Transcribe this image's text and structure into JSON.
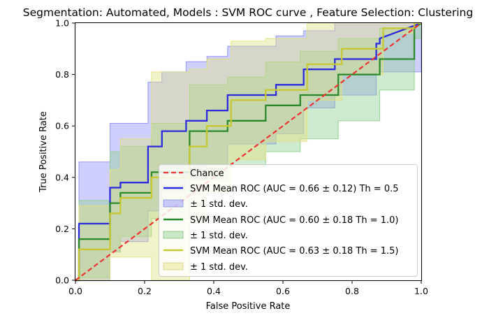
{
  "chart_data": {
    "type": "line",
    "title": "Segmentation: Automated, Models : SVM ROC curve , Feature Selection: Clustering",
    "xlabel": "False Positive Rate",
    "ylabel": "True Positive Rate",
    "xlim": [
      0.0,
      1.0
    ],
    "ylim": [
      0.0,
      1.0
    ],
    "xticks": [
      "0.0",
      "0.2",
      "0.4",
      "0.6",
      "0.8",
      "1.0"
    ],
    "yticks": [
      "0.0",
      "0.2",
      "0.4",
      "0.6",
      "0.8",
      "1.0"
    ],
    "grid": false,
    "legend_position": "lower-right",
    "chance": {
      "name": "Chance",
      "color": "#ee3333",
      "x": [
        0,
        1
      ],
      "y": [
        0,
        1
      ]
    },
    "series": [
      {
        "name": "SVM Mean ROC (AUC = 0.66 ± 0.12) Th = 0.5",
        "band_name": "± 1 std. dev.",
        "color": "#2b2bdd",
        "band_color": "#8c8cff",
        "x": [
          0.0,
          0.01,
          0.01,
          0.1,
          0.1,
          0.13,
          0.13,
          0.21,
          0.21,
          0.25,
          0.25,
          0.32,
          0.32,
          0.38,
          0.38,
          0.44,
          0.44,
          0.58,
          0.58,
          0.66,
          0.66,
          0.75,
          0.75,
          0.87,
          0.87,
          0.88,
          0.88,
          1.0
        ],
        "y": [
          0.0,
          0.0,
          0.22,
          0.22,
          0.36,
          0.36,
          0.38,
          0.38,
          0.52,
          0.52,
          0.58,
          0.58,
          0.62,
          0.62,
          0.66,
          0.66,
          0.72,
          0.72,
          0.76,
          0.76,
          0.82,
          0.82,
          0.86,
          0.86,
          0.92,
          0.92,
          0.94,
          1.0
        ],
        "band_upper": [
          0.0,
          0.0,
          0.46,
          0.46,
          0.61,
          0.61,
          0.61,
          0.61,
          0.77,
          0.77,
          0.81,
          0.81,
          0.85,
          0.85,
          0.87,
          0.87,
          0.91,
          0.91,
          0.95,
          0.95,
          0.97,
          0.97,
          1.0,
          1.0,
          1.0,
          1.0,
          1.0,
          1.0
        ],
        "band_lower": [
          0.0,
          0.0,
          0.0,
          0.0,
          0.11,
          0.11,
          0.15,
          0.15,
          0.27,
          0.27,
          0.35,
          0.35,
          0.39,
          0.39,
          0.45,
          0.45,
          0.53,
          0.53,
          0.57,
          0.57,
          0.67,
          0.67,
          0.72,
          0.72,
          0.81,
          0.81,
          0.81,
          0.81
        ]
      },
      {
        "name": "SVM Mean ROC (AUC = 0.60 ± 0.18 Th = 1.0)",
        "band_name": "± 1 std. dev.",
        "color": "#2a8a2a",
        "band_color": "#8ccf8c",
        "x": [
          0.0,
          0.01,
          0.01,
          0.1,
          0.1,
          0.13,
          0.13,
          0.22,
          0.22,
          0.33,
          0.33,
          0.44,
          0.44,
          0.55,
          0.55,
          0.65,
          0.65,
          0.76,
          0.76,
          0.88,
          0.88,
          0.98,
          0.98,
          1.0
        ],
        "y": [
          0.0,
          0.0,
          0.16,
          0.16,
          0.3,
          0.3,
          0.34,
          0.34,
          0.42,
          0.42,
          0.58,
          0.58,
          0.62,
          0.62,
          0.68,
          0.68,
          0.72,
          0.72,
          0.8,
          0.8,
          0.86,
          0.86,
          0.98,
          1.0
        ],
        "band_upper": [
          0.0,
          0.0,
          0.31,
          0.31,
          0.5,
          0.5,
          0.52,
          0.52,
          0.61,
          0.61,
          0.76,
          0.76,
          0.79,
          0.79,
          0.85,
          0.85,
          0.89,
          0.89,
          0.94,
          0.94,
          0.98,
          0.98,
          1.0,
          1.0
        ],
        "band_lower": [
          0.0,
          0.0,
          0.01,
          0.01,
          0.11,
          0.11,
          0.17,
          0.17,
          0.24,
          0.24,
          0.39,
          0.39,
          0.44,
          0.44,
          0.5,
          0.5,
          0.55,
          0.55,
          0.62,
          0.62,
          0.74,
          0.74,
          0.94,
          0.94
        ]
      },
      {
        "name": "SVM Mean ROC (AUC = 0.63 ± 0.18 Th = 1.5)",
        "band_name": "± 1 std. dev.",
        "color": "#c8c832",
        "band_color": "#e0e080",
        "x": [
          0.0,
          0.01,
          0.01,
          0.1,
          0.1,
          0.13,
          0.13,
          0.22,
          0.22,
          0.33,
          0.33,
          0.38,
          0.38,
          0.45,
          0.45,
          0.55,
          0.55,
          0.67,
          0.67,
          0.77,
          0.77,
          0.89,
          0.89,
          0.98,
          0.98,
          1.0
        ],
        "y": [
          0.0,
          0.0,
          0.12,
          0.12,
          0.26,
          0.26,
          0.32,
          0.32,
          0.4,
          0.4,
          0.52,
          0.52,
          0.6,
          0.6,
          0.7,
          0.7,
          0.74,
          0.74,
          0.84,
          0.84,
          0.9,
          0.9,
          0.98,
          0.98,
          1.0,
          1.0
        ],
        "band_upper": [
          0.0,
          0.0,
          0.29,
          0.29,
          0.43,
          0.43,
          0.55,
          0.55,
          0.81,
          0.81,
          0.82,
          0.82,
          0.86,
          0.86,
          0.93,
          0.93,
          0.94,
          0.94,
          1.0,
          1.0,
          1.0,
          1.0,
          1.0,
          1.0,
          1.0,
          1.0
        ],
        "band_lower": [
          0.0,
          0.0,
          0.0,
          0.0,
          0.09,
          0.09,
          0.09,
          0.09,
          0.0,
          0.0,
          0.22,
          0.22,
          0.34,
          0.34,
          0.47,
          0.47,
          0.54,
          0.54,
          0.7,
          0.7,
          0.8,
          0.8,
          0.96,
          0.96,
          1.0,
          1.0
        ]
      }
    ]
  }
}
